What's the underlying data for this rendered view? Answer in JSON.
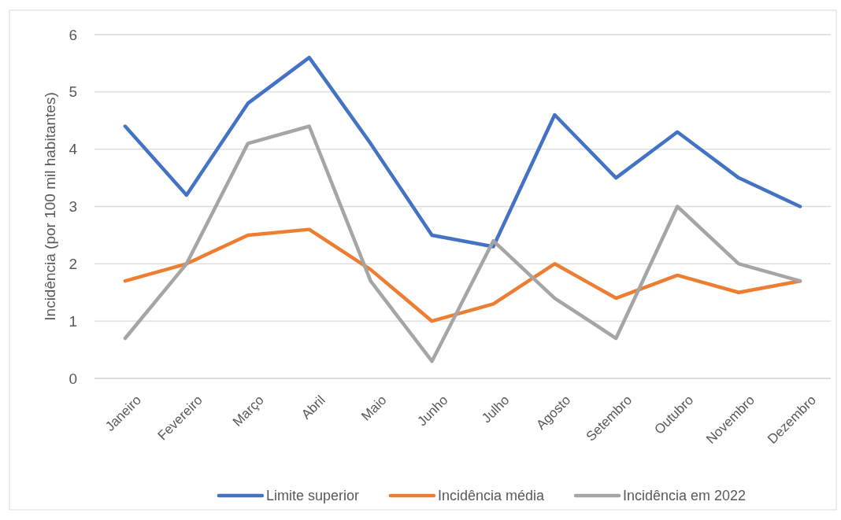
{
  "chart_data": {
    "type": "line",
    "ylabel": "Incidência (por 100 mil habitantes)",
    "categories": [
      "Janeiro",
      "Fevereiro",
      "Março",
      "Abril",
      "Maio",
      "Junho",
      "Julho",
      "Agosto",
      "Setembro",
      "Outubro",
      "Novembro",
      "Dezembro"
    ],
    "series": [
      {
        "name": "Limite superior",
        "color": "#4472c4",
        "values": [
          4.4,
          3.2,
          4.8,
          5.6,
          4.1,
          2.5,
          2.3,
          4.6,
          3.5,
          4.3,
          3.5,
          3.0
        ]
      },
      {
        "name": "Incidência média",
        "color": "#ed7d31",
        "values": [
          1.7,
          2.0,
          2.5,
          2.6,
          1.9,
          1.0,
          1.3,
          2.0,
          1.4,
          1.8,
          1.5,
          1.7
        ]
      },
      {
        "name": "Incidência em 2022",
        "color": "#a5a5a5",
        "values": [
          0.7,
          2.0,
          4.1,
          4.4,
          1.7,
          0.3,
          2.4,
          1.4,
          0.7,
          3.0,
          2.0,
          1.7
        ]
      }
    ],
    "ylim": [
      0,
      6
    ],
    "yticks": [
      0,
      1,
      2,
      3,
      4,
      5,
      6
    ],
    "grid": "y",
    "legend": "bottom",
    "line_style": "solid",
    "marker": "none"
  }
}
